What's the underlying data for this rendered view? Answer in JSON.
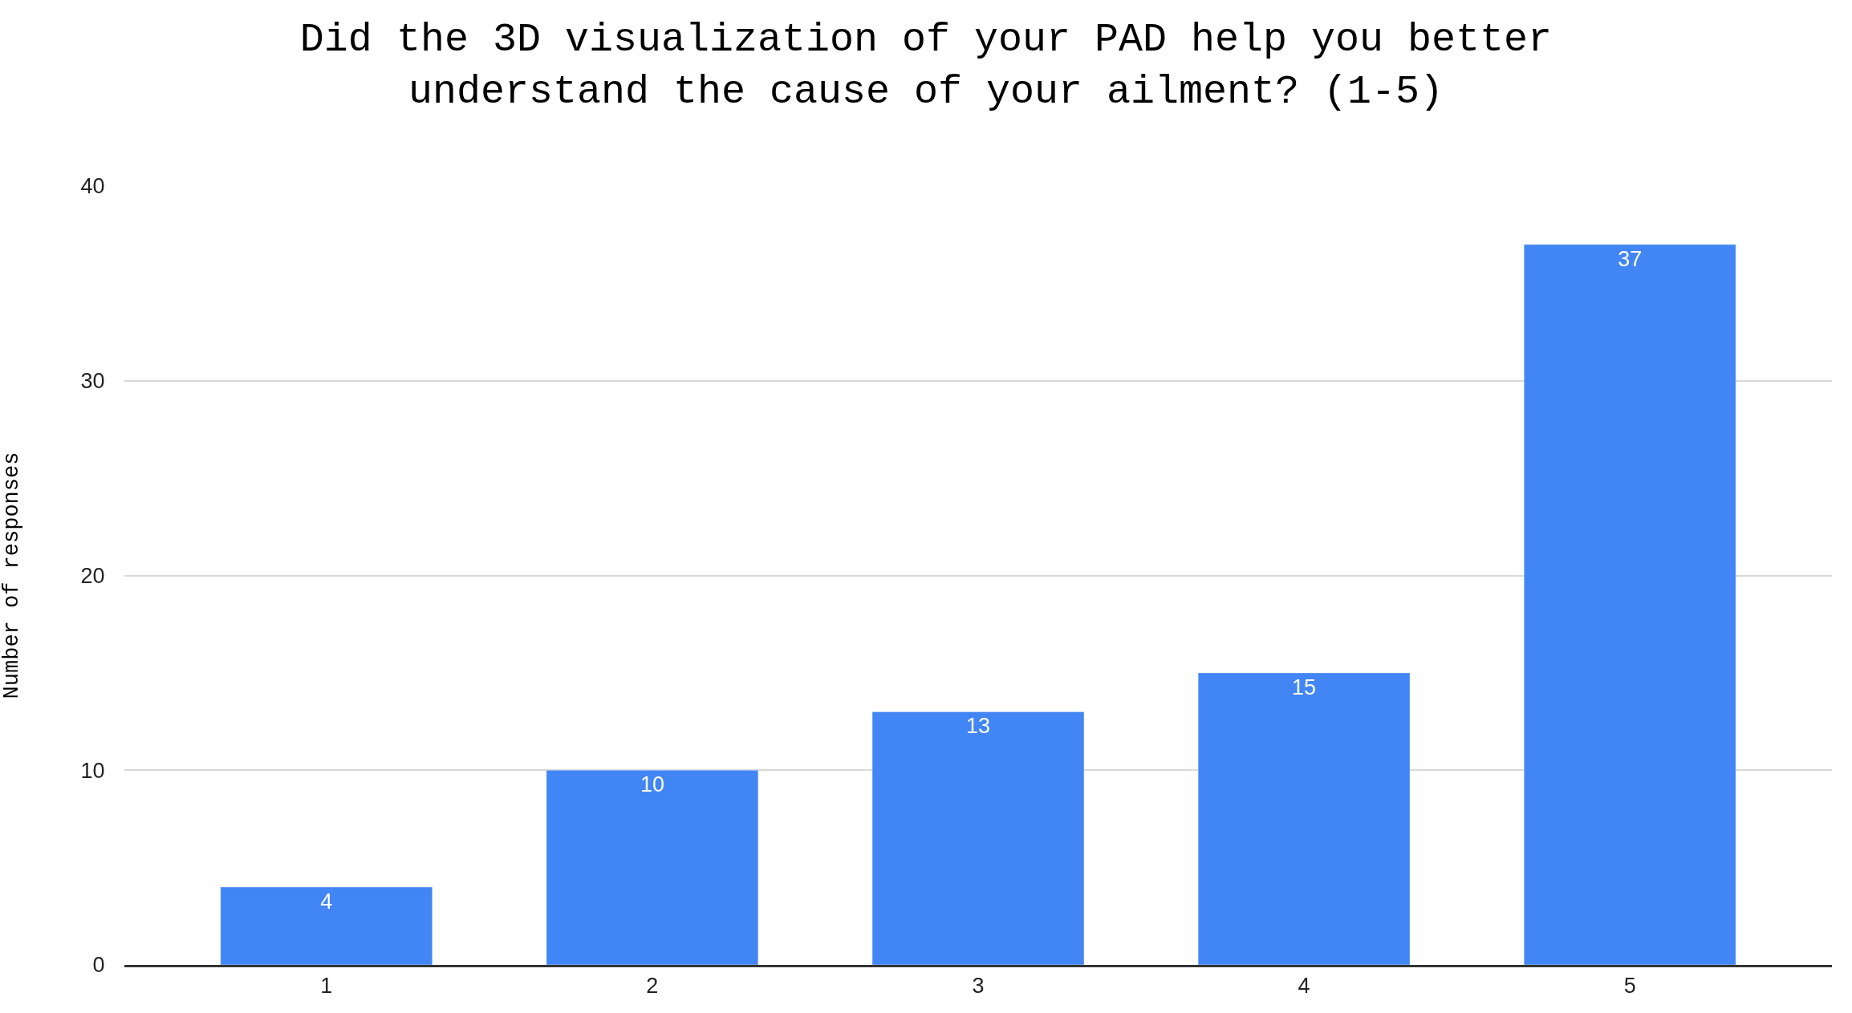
{
  "chart_data": {
    "type": "bar",
    "title": "Did the 3D visualization of your PAD help you better\nunderstand the cause of your ailment? (1-5)",
    "ylabel": "Number of responses",
    "categories": [
      "1",
      "2",
      "3",
      "4",
      "5"
    ],
    "values": [
      4,
      10,
      13,
      15,
      37
    ],
    "color": "#4285f4",
    "ylim": [
      0,
      40
    ],
    "yticks": [
      0,
      10,
      20,
      30,
      40
    ],
    "grid": "y",
    "data_labels": true,
    "legend": false
  }
}
